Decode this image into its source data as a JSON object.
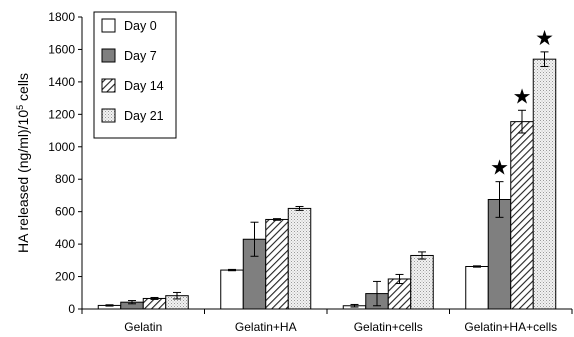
{
  "chart_data": {
    "type": "bar",
    "ylabel_main": "HA released (ng/ml)/10",
    "ylabel_sup": "5",
    "ylabel_tail": " cells",
    "xlabel": "",
    "ylim": [
      0,
      1800
    ],
    "yticks": [
      0,
      200,
      400,
      600,
      800,
      1000,
      1200,
      1400,
      1600,
      1800
    ],
    "categories": [
      "Gelatin",
      "Gelatin+HA",
      "Gelatin+cells",
      "Gelatin+HA+cells"
    ],
    "legend_position": "top-left",
    "series": [
      {
        "name": "Day 0",
        "values": [
          22,
          240,
          20,
          262
        ],
        "errors": [
          4,
          4,
          8,
          4
        ],
        "pattern": "white"
      },
      {
        "name": "Day 7",
        "values": [
          42,
          430,
          95,
          675
        ],
        "errors": [
          10,
          105,
          75,
          110
        ],
        "pattern": "gray"
      },
      {
        "name": "Day 14",
        "values": [
          65,
          552,
          185,
          1155
        ],
        "errors": [
          6,
          5,
          28,
          70
        ],
        "pattern": "hatch"
      },
      {
        "name": "Day 21",
        "values": [
          82,
          620,
          330,
          1540
        ],
        "errors": [
          20,
          12,
          22,
          45
        ],
        "pattern": "dots"
      }
    ],
    "significance": [
      {
        "category": 3,
        "series": 1,
        "symbol": "★"
      },
      {
        "category": 3,
        "series": 2,
        "symbol": "★"
      },
      {
        "category": 3,
        "series": 3,
        "symbol": "★"
      }
    ]
  }
}
